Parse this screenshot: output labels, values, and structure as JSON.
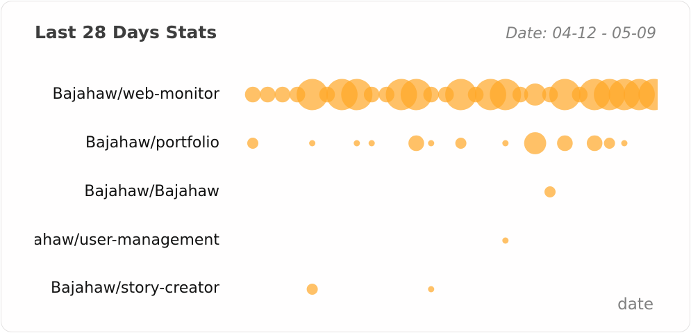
{
  "header": {
    "title": "Last 28 Days Stats",
    "date_range": "Date: 04-12 - 05-09"
  },
  "colors": {
    "bubble": "#ffa726",
    "card_border": "#e4e2e2",
    "title": "#3d3d3d",
    "muted": "#808080"
  },
  "chart_data": {
    "type": "scatter",
    "title": "Last 28 Days Stats",
    "xlabel": "date",
    "ylabel": "",
    "x_range": [
      "04-12",
      "05-09"
    ],
    "grid": false,
    "legend": "none",
    "categories": [
      "Bajahaw/web-monitor",
      "Bajahaw/portfolio",
      "Bajahaw/Bajahaw",
      "Bajahaw/user-management",
      "Bajahaw/story-creator"
    ],
    "series": [
      {
        "repo": "Bajahaw/web-monitor",
        "points": [
          {
            "day": 1,
            "size": 3
          },
          {
            "day": 2,
            "size": 3
          },
          {
            "day": 3,
            "size": 3
          },
          {
            "day": 4,
            "size": 3
          },
          {
            "day": 5,
            "size": 12
          },
          {
            "day": 6,
            "size": 3
          },
          {
            "day": 7,
            "size": 12
          },
          {
            "day": 8,
            "size": 12
          },
          {
            "day": 9,
            "size": 3
          },
          {
            "day": 10,
            "size": 3
          },
          {
            "day": 11,
            "size": 12
          },
          {
            "day": 12,
            "size": 12
          },
          {
            "day": 13,
            "size": 3
          },
          {
            "day": 14,
            "size": 3
          },
          {
            "day": 15,
            "size": 12
          },
          {
            "day": 16,
            "size": 3
          },
          {
            "day": 17,
            "size": 12
          },
          {
            "day": 18,
            "size": 12
          },
          {
            "day": 19,
            "size": 3
          },
          {
            "day": 20,
            "size": 6
          },
          {
            "day": 21,
            "size": 3
          },
          {
            "day": 22,
            "size": 12
          },
          {
            "day": 23,
            "size": 3
          },
          {
            "day": 24,
            "size": 12
          },
          {
            "day": 25,
            "size": 12
          },
          {
            "day": 26,
            "size": 12
          },
          {
            "day": 27,
            "size": 12
          },
          {
            "day": 28,
            "size": 12
          }
        ]
      },
      {
        "repo": "Bajahaw/portfolio",
        "points": [
          {
            "day": 1,
            "size": 1.5
          },
          {
            "day": 5,
            "size": 0.4
          },
          {
            "day": 8,
            "size": 0.4
          },
          {
            "day": 9,
            "size": 0.4
          },
          {
            "day": 12,
            "size": 3
          },
          {
            "day": 13,
            "size": 0.4
          },
          {
            "day": 15,
            "size": 1.5
          },
          {
            "day": 18,
            "size": 0.4
          },
          {
            "day": 20,
            "size": 6
          },
          {
            "day": 22,
            "size": 3
          },
          {
            "day": 24,
            "size": 3
          },
          {
            "day": 25,
            "size": 1.5
          },
          {
            "day": 26,
            "size": 0.4
          }
        ]
      },
      {
        "repo": "Bajahaw/Bajahaw",
        "points": [
          {
            "day": 21,
            "size": 1.5
          }
        ]
      },
      {
        "repo": "Bajahaw/user-management",
        "points": [
          {
            "day": 18,
            "size": 0.4
          }
        ]
      },
      {
        "repo": "Bajahaw/story-creator",
        "points": [
          {
            "day": 5,
            "size": 1.5
          },
          {
            "day": 13,
            "size": 0.4
          }
        ]
      }
    ]
  }
}
